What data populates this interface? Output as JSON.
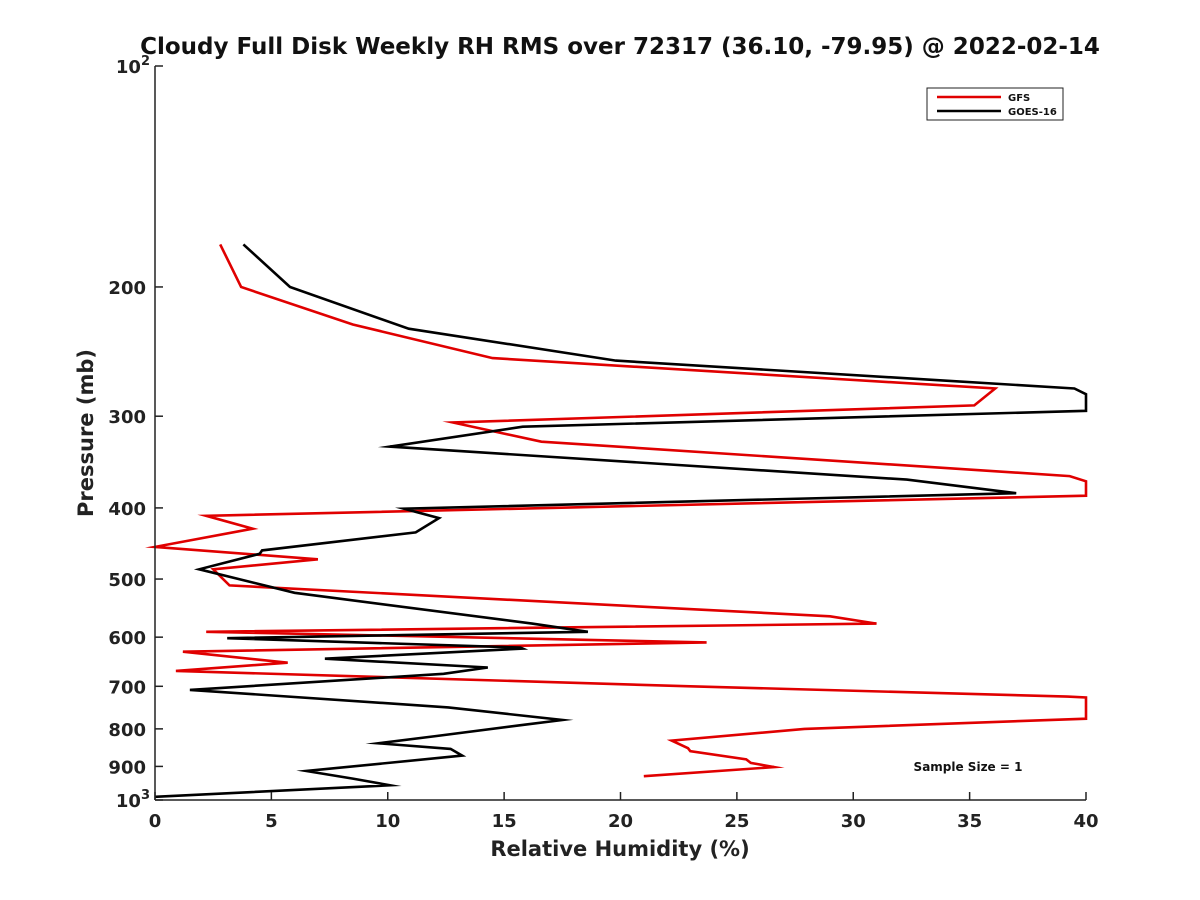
{
  "chart_data": {
    "type": "line",
    "title": "Cloudy Full Disk Weekly RH RMS over 72317 (36.10, -79.95) @ 2022-02-14",
    "xlabel": "Relative Humidity (%)",
    "ylabel": "Pressure (mb)",
    "xlim": [
      0,
      40
    ],
    "ylim": [
      100,
      1000
    ],
    "y_scale": "log",
    "y_reversed": true,
    "grid": false,
    "legend_position": "top-right",
    "x_ticks": [
      0,
      5,
      10,
      15,
      20,
      25,
      30,
      35,
      40
    ],
    "y_ticks": [
      {
        "value": 100,
        "label": "10",
        "exp": "2"
      },
      {
        "value": 200,
        "label": "200"
      },
      {
        "value": 300,
        "label": "300"
      },
      {
        "value": 400,
        "label": "400"
      },
      {
        "value": 500,
        "label": "500"
      },
      {
        "value": 600,
        "label": "600"
      },
      {
        "value": 700,
        "label": "700"
      },
      {
        "value": 800,
        "label": "800"
      },
      {
        "value": 900,
        "label": "900"
      },
      {
        "value": 1000,
        "label": "10",
        "exp": "3"
      }
    ],
    "annotation": "Sample Size = 1",
    "series": [
      {
        "name": "GFS",
        "color": "#e00000",
        "points": [
          [
            2.8,
            175
          ],
          [
            3.7,
            200
          ],
          [
            8.5,
            225
          ],
          [
            14.5,
            250
          ],
          [
            36.1,
            275
          ],
          [
            35.2,
            290
          ],
          [
            12.8,
            306
          ],
          [
            16.6,
            325
          ],
          [
            39.3,
            362
          ],
          [
            40,
            368
          ],
          [
            40,
            385
          ],
          [
            2.2,
            410
          ],
          [
            4.2,
            427
          ],
          [
            0,
            452
          ],
          [
            7.0,
            470
          ],
          [
            2.5,
            485
          ],
          [
            3.2,
            510
          ],
          [
            29.0,
            562
          ],
          [
            31.0,
            575
          ],
          [
            2.2,
            590
          ],
          [
            23.7,
            610
          ],
          [
            1.2,
            628
          ],
          [
            5.7,
            650
          ],
          [
            0.9,
            667
          ],
          [
            23.0,
            700
          ],
          [
            39.2,
            723
          ],
          [
            40,
            725
          ],
          [
            40,
            775
          ],
          [
            27.9,
            800
          ],
          [
            22.2,
            830
          ],
          [
            22.9,
            850
          ],
          [
            23.0,
            858
          ],
          [
            25.4,
            880
          ],
          [
            25.6,
            890
          ],
          [
            26.6,
            902
          ],
          [
            21.0,
            928
          ]
        ]
      },
      {
        "name": "GOES-16",
        "color": "#000000",
        "points": [
          [
            3.8,
            175
          ],
          [
            5.8,
            200
          ],
          [
            10.9,
            228
          ],
          [
            19.8,
            252
          ],
          [
            39.5,
            275
          ],
          [
            40,
            280
          ],
          [
            40,
            295
          ],
          [
            15.8,
            310
          ],
          [
            10.1,
            330
          ],
          [
            32.3,
            366
          ],
          [
            37.0,
            382
          ],
          [
            10.7,
            401
          ],
          [
            12.2,
            413
          ],
          [
            11.2,
            432
          ],
          [
            4.6,
            457
          ],
          [
            4.5,
            462
          ],
          [
            1.9,
            485
          ],
          [
            6.0,
            522
          ],
          [
            16.2,
            575
          ],
          [
            18.6,
            590
          ],
          [
            3.1,
            602
          ],
          [
            15.7,
            620
          ],
          [
            15.8,
            622
          ],
          [
            7.3,
            642
          ],
          [
            14.3,
            660
          ],
          [
            12.4,
            673
          ],
          [
            1.5,
            708
          ],
          [
            12.6,
            748
          ],
          [
            17.5,
            778
          ],
          [
            15.8,
            790
          ],
          [
            12.1,
            818
          ],
          [
            9.6,
            837
          ],
          [
            12.7,
            852
          ],
          [
            13.2,
            870
          ],
          [
            6.5,
            913
          ],
          [
            8.5,
            935
          ],
          [
            10.1,
            955
          ],
          [
            0,
            990
          ]
        ]
      }
    ]
  }
}
